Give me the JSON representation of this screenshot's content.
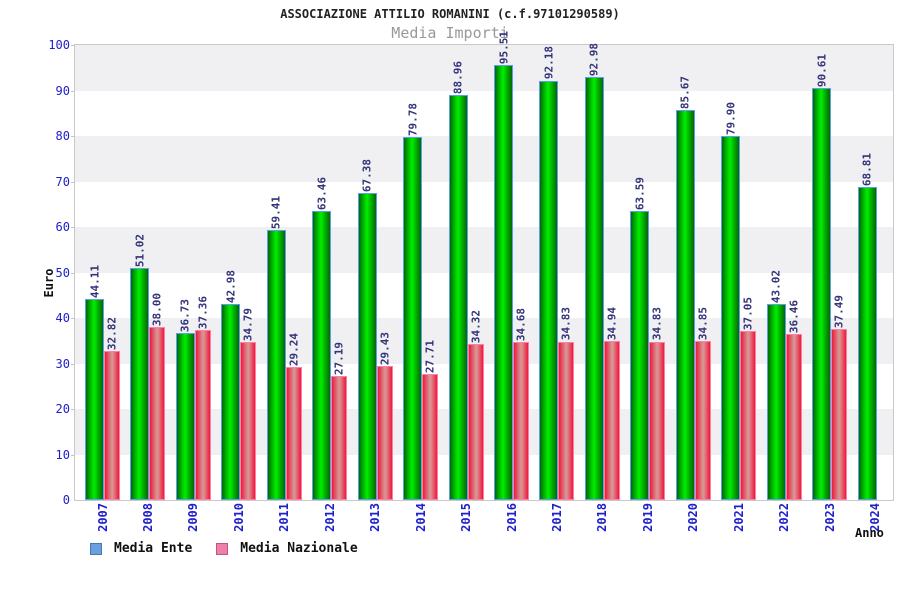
{
  "chart_data": {
    "type": "bar",
    "title": "ASSOCIAZIONE ATTILIO ROMANINI (c.f.97101290589)",
    "subtitle": "Media Importi",
    "xlabel": "Anno",
    "ylabel": "Euro",
    "ylim": [
      0,
      100
    ],
    "ytick_step": 10,
    "yticks": [
      0,
      10,
      20,
      30,
      40,
      50,
      60,
      70,
      80,
      90,
      100
    ],
    "grid": "alternating horizontal bands, gray on top band",
    "legend_position": "bottom-left",
    "value_label_format": "2 decimals, rotated 90deg above bar",
    "categories": [
      "2007",
      "2008",
      "2009",
      "2010",
      "2011",
      "2012",
      "2013",
      "2014",
      "2015",
      "2016",
      "2017",
      "2018",
      "2019",
      "2020",
      "2021",
      "2022",
      "2023",
      "2024"
    ],
    "series": [
      {
        "name": "Media Ente",
        "bar_color": "#00CC00",
        "bar_edge_color": "#5C9EF0",
        "legend_swatch_color": "#6CA0DC",
        "values": [
          44.11,
          51.02,
          36.73,
          42.98,
          59.41,
          63.46,
          67.38,
          79.78,
          88.96,
          95.51,
          92.18,
          92.98,
          63.59,
          85.67,
          79.9,
          43.02,
          90.61,
          68.81
        ]
      },
      {
        "name": "Media Nazionale",
        "bar_color": "#EE2244",
        "bar_edge_color": "#FF7FA8",
        "legend_swatch_color": "#ED7FA9",
        "values": [
          32.82,
          38.0,
          37.36,
          34.79,
          29.24,
          27.19,
          29.43,
          27.71,
          34.32,
          34.68,
          34.83,
          34.94,
          34.83,
          34.85,
          37.05,
          36.46,
          37.49,
          null
        ]
      }
    ]
  },
  "colors": {
    "title_text": "#222222",
    "subtitle_text": "#999999",
    "axis_tick_text": "#2020CC",
    "value_label_text": "#33337A",
    "band_gray": "#F0F0F2",
    "plot_border": "#C9C9C9",
    "axis_title_text": "#111111"
  }
}
